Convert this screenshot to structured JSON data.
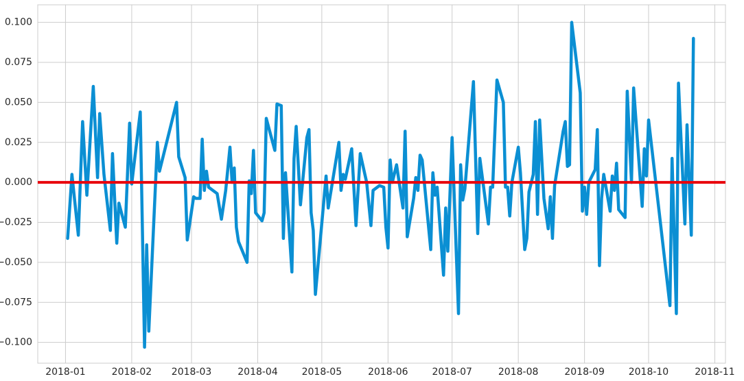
{
  "chart_data": {
    "type": "line",
    "grid": true,
    "xlim": [
      -13,
      309
    ],
    "ylim": [
      -0.113,
      0.111
    ],
    "xticks": [
      {
        "value": 0,
        "label": "2018-01"
      },
      {
        "value": 31,
        "label": "2018-02"
      },
      {
        "value": 59,
        "label": "2018-03"
      },
      {
        "value": 90,
        "label": "2018-04"
      },
      {
        "value": 120,
        "label": "2018-05"
      },
      {
        "value": 151,
        "label": "2018-06"
      },
      {
        "value": 181,
        "label": "2018-07"
      },
      {
        "value": 212,
        "label": "2018-08"
      },
      {
        "value": 243,
        "label": "2018-09"
      },
      {
        "value": 273,
        "label": "2018-10"
      },
      {
        "value": 304,
        "label": "2018-11"
      }
    ],
    "yticks": [
      {
        "value": -0.1,
        "label": "−0.100"
      },
      {
        "value": -0.075,
        "label": "−0.075"
      },
      {
        "value": -0.05,
        "label": "−0.050"
      },
      {
        "value": -0.025,
        "label": "−0.025"
      },
      {
        "value": 0,
        "label": "0.000"
      },
      {
        "value": 0.025,
        "label": "0.025"
      },
      {
        "value": 0.05,
        "label": "0.050"
      },
      {
        "value": 0.075,
        "label": "0.075"
      },
      {
        "value": 0.1,
        "label": "0.100"
      }
    ],
    "reference_line": {
      "value": 0,
      "color": "#e8000b"
    },
    "series": [
      {
        "color": "#0b8fd3",
        "x": [
          1,
          3,
          6,
          8,
          10,
          13,
          15,
          16,
          18,
          21,
          22,
          24,
          25,
          28,
          30,
          31,
          35,
          37,
          38,
          39,
          42,
          43,
          44,
          52,
          53,
          56,
          57,
          60,
          61,
          63,
          64,
          65,
          66,
          67,
          71,
          73,
          75,
          77,
          78,
          79,
          80,
          81,
          85,
          86,
          87,
          88,
          89,
          92,
          93,
          94,
          98,
          99,
          101,
          102,
          103,
          106,
          107,
          108,
          110,
          113,
          114,
          115,
          116,
          117,
          122,
          123,
          128,
          129,
          130,
          131,
          134,
          136,
          138,
          141,
          143,
          144,
          147,
          149,
          150,
          151,
          152,
          153,
          155,
          158,
          159,
          160,
          163,
          164,
          165,
          166,
          167,
          171,
          172,
          173,
          174,
          177,
          178,
          179,
          181,
          184,
          185,
          186,
          187,
          191,
          193,
          194,
          198,
          199,
          200,
          202,
          205,
          206,
          207,
          208,
          209,
          212,
          213,
          215,
          216,
          217,
          219,
          220,
          221,
          222,
          224,
          226,
          227,
          228,
          229,
          233,
          234,
          235,
          236,
          237,
          241,
          242,
          243,
          244,
          245,
          248,
          249,
          250,
          251,
          252,
          255,
          256,
          257,
          258,
          259,
          262,
          263,
          265,
          266,
          270,
          271,
          272,
          273,
          283,
          284,
          286,
          287,
          290,
          291,
          293,
          294
        ],
        "values": [
          -0.035,
          0.005,
          -0.033,
          0.038,
          -0.008,
          0.06,
          0.003,
          0.043,
          0.005,
          -0.03,
          0.018,
          -0.038,
          -0.013,
          -0.028,
          0.037,
          -0.001,
          0.044,
          -0.103,
          -0.039,
          -0.093,
          -0.005,
          0.025,
          0.007,
          0.05,
          0.016,
          0.003,
          -0.036,
          -0.009,
          -0.01,
          -0.01,
          0.027,
          -0.005,
          0.007,
          -0.003,
          -0.007,
          -0.023,
          -0.005,
          0.022,
          0.0,
          0.009,
          -0.028,
          -0.037,
          -0.05,
          0.001,
          -0.007,
          0.02,
          -0.019,
          -0.024,
          -0.019,
          0.04,
          0.02,
          0.049,
          0.048,
          -0.035,
          0.006,
          -0.056,
          0.015,
          0.035,
          -0.014,
          0.028,
          0.033,
          -0.019,
          -0.03,
          -0.07,
          0.004,
          -0.016,
          0.025,
          -0.005,
          0.005,
          0.002,
          0.021,
          -0.027,
          0.018,
          0.0,
          -0.027,
          -0.005,
          -0.002,
          -0.003,
          -0.028,
          -0.041,
          0.014,
          0.0,
          0.011,
          -0.016,
          0.032,
          -0.034,
          -0.01,
          0.003,
          -0.005,
          0.017,
          0.014,
          -0.042,
          0.006,
          -0.008,
          -0.003,
          -0.058,
          -0.016,
          -0.043,
          0.028,
          -0.082,
          0.011,
          -0.011,
          -0.004,
          0.063,
          -0.032,
          0.015,
          -0.026,
          -0.003,
          -0.003,
          0.064,
          0.05,
          -0.003,
          -0.003,
          -0.021,
          0.0,
          0.022,
          0.006,
          -0.042,
          -0.035,
          -0.006,
          0.005,
          0.038,
          -0.02,
          0.039,
          -0.01,
          -0.029,
          -0.009,
          -0.035,
          -0.002,
          0.032,
          0.038,
          0.01,
          0.011,
          0.1,
          0.056,
          -0.018,
          -0.003,
          -0.02,
          0.0,
          0.008,
          0.033,
          -0.052,
          -0.01,
          0.005,
          -0.018,
          0.004,
          -0.005,
          0.012,
          -0.017,
          -0.022,
          0.057,
          0.0,
          0.059,
          -0.015,
          0.021,
          0.004,
          0.039,
          -0.077,
          0.015,
          -0.082,
          0.062,
          -0.026,
          0.036,
          -0.033,
          0.09
        ]
      }
    ]
  }
}
